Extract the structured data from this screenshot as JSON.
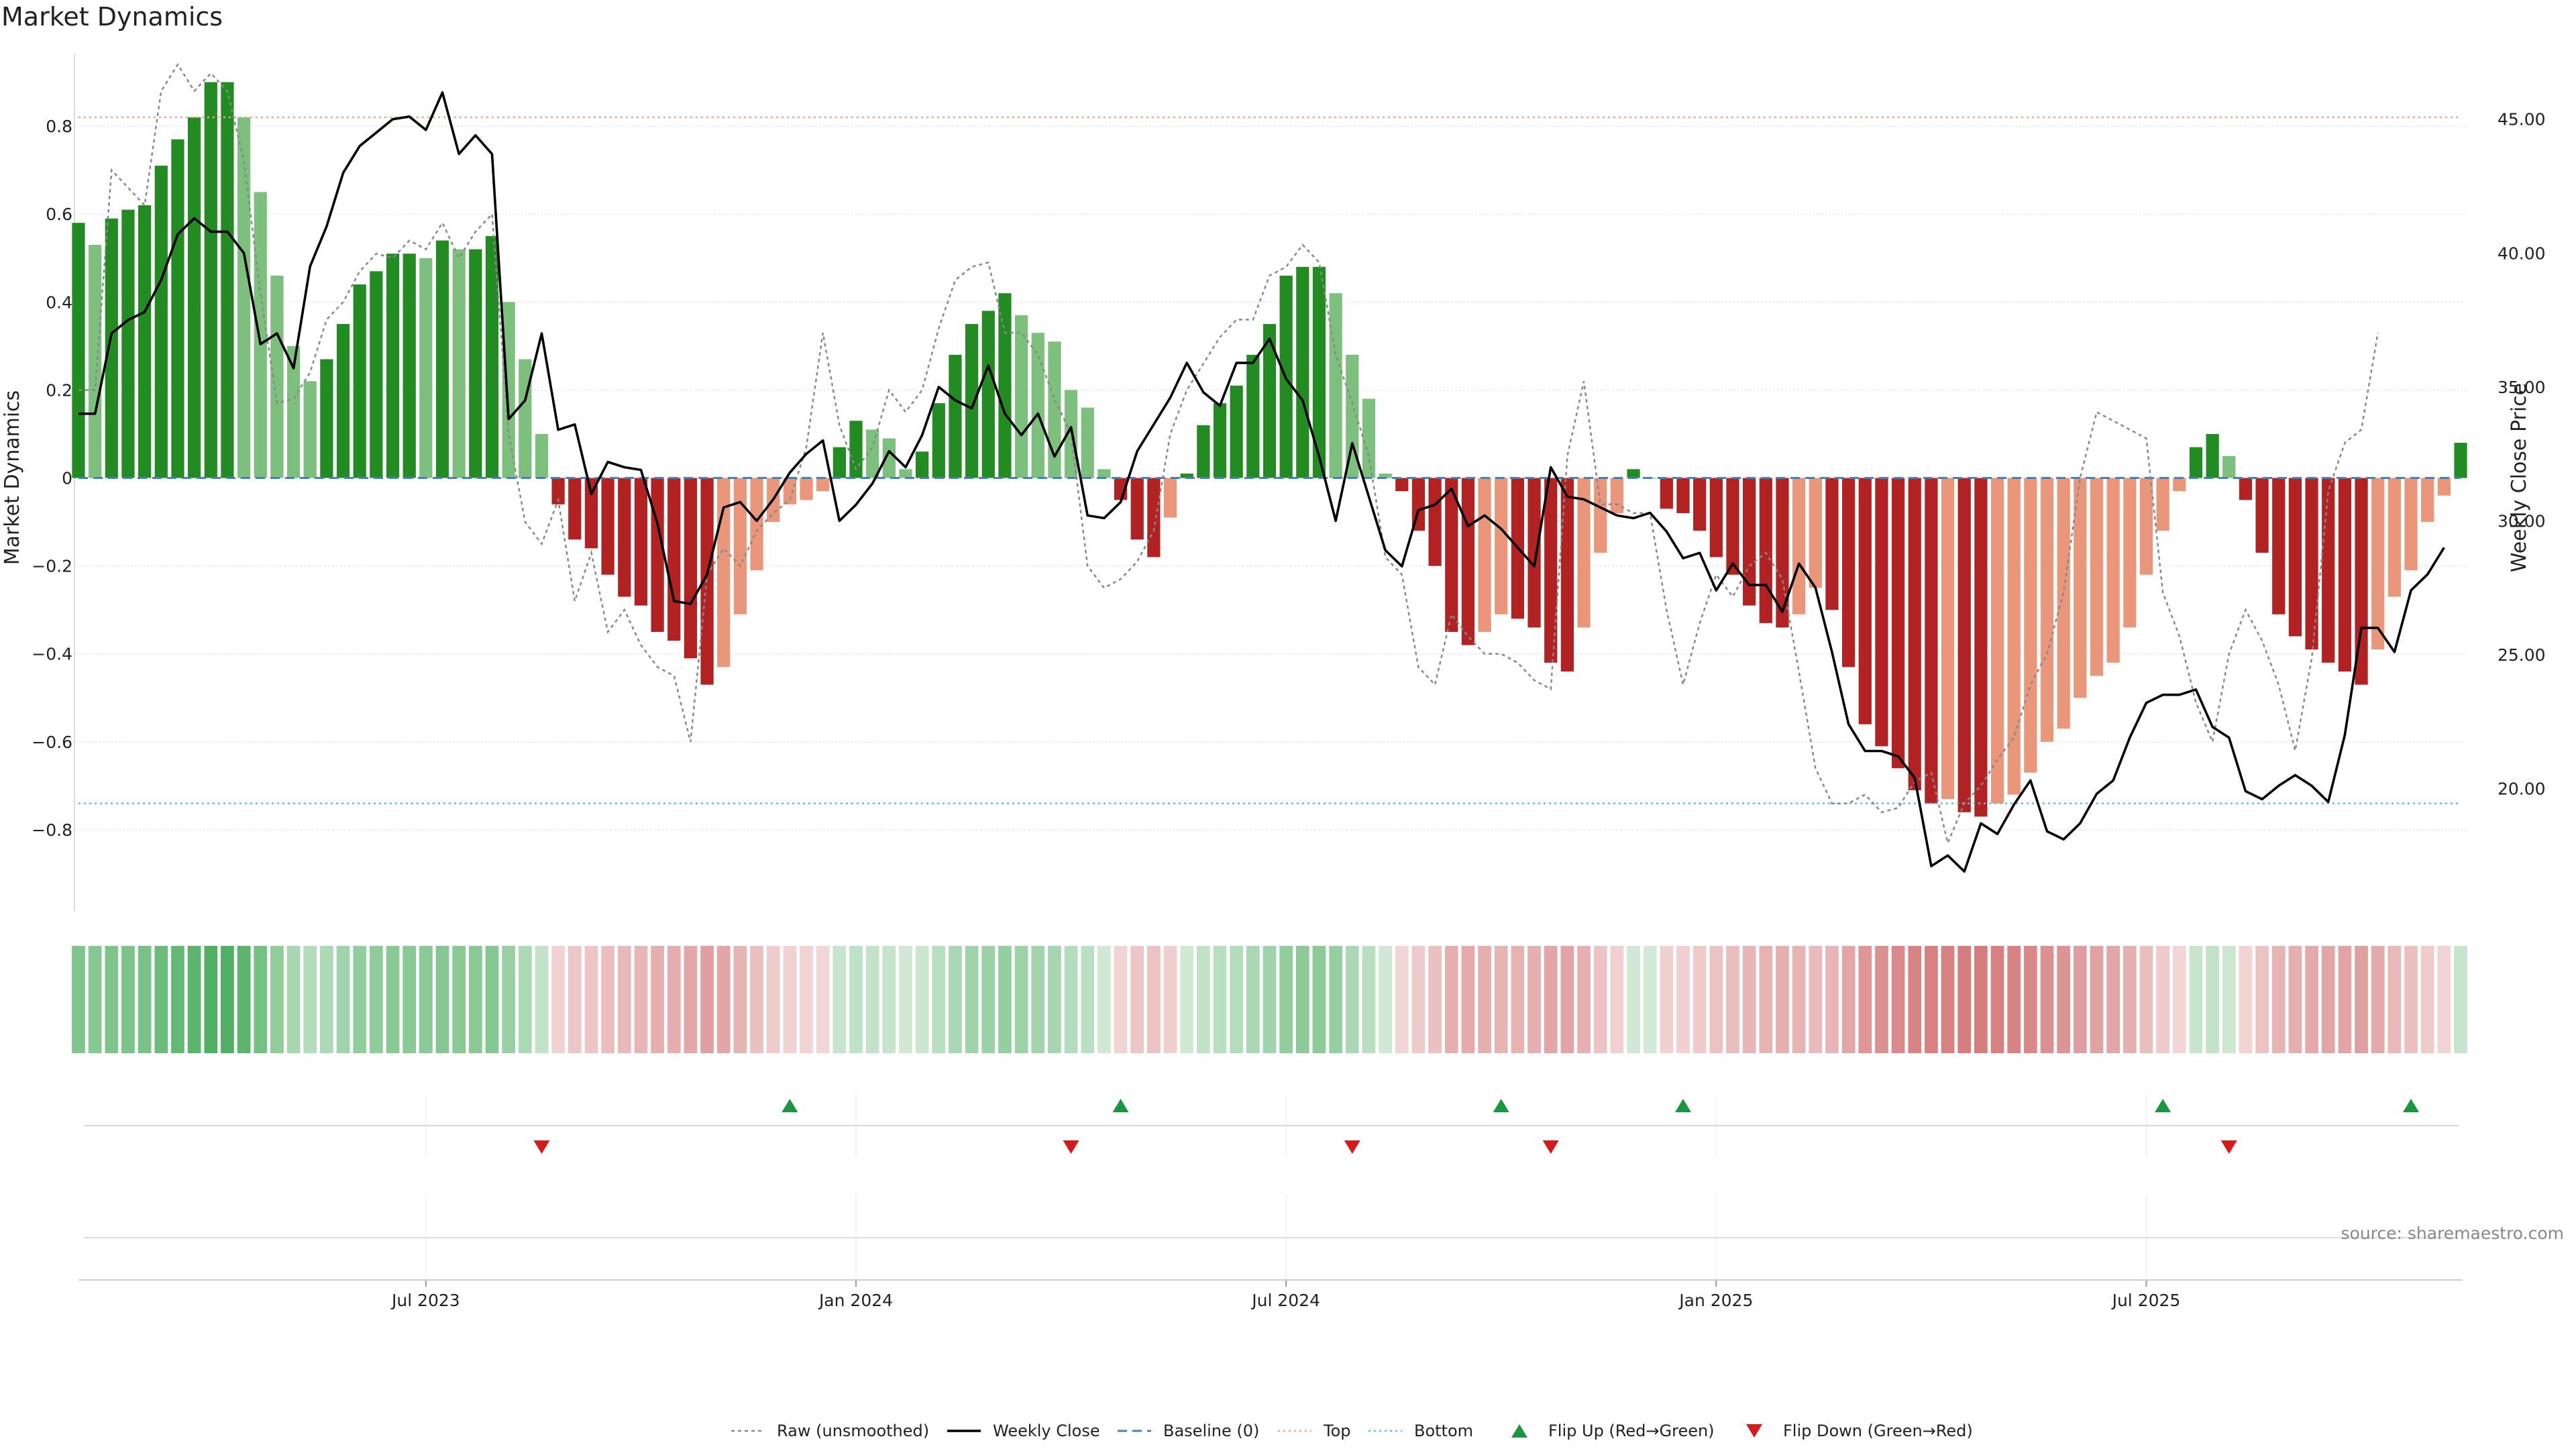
{
  "chart_data": {
    "type": "bar",
    "title": "Market Dynamics",
    "ylabel_left": "Market Dynamics",
    "ylabel_right": "Weekly Close Price",
    "xlabel": "",
    "source": "source: sharemaestro.com",
    "ylim_left": [
      -0.98,
      0.98
    ],
    "ylim_right": [
      15.5,
      47.7
    ],
    "yticks_left": [
      "0.8",
      "0.6",
      "0.4",
      "0.2",
      "0",
      "−0.2",
      "−0.4",
      "−0.6",
      "−0.8"
    ],
    "yticks_left_values": [
      0.8,
      0.6,
      0.4,
      0.2,
      0,
      -0.2,
      -0.4,
      -0.6,
      -0.8
    ],
    "yticks_right": [
      "45.00",
      "40.00",
      "35.00",
      "30.00",
      "25.00",
      "20.00"
    ],
    "yticks_right_values": [
      45,
      40,
      35,
      30,
      25,
      20
    ],
    "xticks": [
      {
        "label": "Jul 2023",
        "week": 21
      },
      {
        "label": "Jan 2024",
        "week": 47
      },
      {
        "label": "Jul 2024",
        "week": 73
      },
      {
        "label": "Jan 2025",
        "week": 99
      },
      {
        "label": "Jul 2025",
        "week": 125
      }
    ],
    "top_level": 0.82,
    "bottom_level": -0.74,
    "baseline": 0,
    "grid": true,
    "legend_position": "bottom-center",
    "legend": [
      "Raw (unsmoothed)",
      "Weekly Close",
      "Baseline (0)",
      "Top",
      "Bottom",
      "Flip Up (Red→Green)",
      "Flip Down (Green→Red)"
    ],
    "colors": {
      "pos_strong": "#228b22",
      "pos_weak": "#7dbf7d",
      "neg_strong": "#b22222",
      "neg_weak": "#e9967a",
      "close": "#000000",
      "raw": "#888888",
      "baseline": "#4682b4",
      "top": "#f4a582",
      "bottom": "#5bc0de",
      "flip_up": "#1a9641",
      "flip_down": "#d7191c"
    },
    "momentum": [
      0.58,
      0.53,
      0.59,
      0.61,
      0.62,
      0.71,
      0.77,
      0.82,
      0.9,
      0.9,
      0.82,
      0.65,
      0.46,
      0.3,
      0.22,
      0.27,
      0.35,
      0.44,
      0.47,
      0.51,
      0.51,
      0.5,
      0.54,
      0.52,
      0.52,
      0.55,
      0.4,
      0.27,
      0.1,
      -0.06,
      -0.14,
      -0.16,
      -0.22,
      -0.27,
      -0.29,
      -0.35,
      -0.37,
      -0.41,
      -0.47,
      -0.43,
      -0.31,
      -0.21,
      -0.1,
      -0.06,
      -0.05,
      -0.03,
      0.07,
      0.13,
      0.11,
      0.09,
      0.02,
      0.06,
      0.17,
      0.28,
      0.35,
      0.38,
      0.42,
      0.37,
      0.33,
      0.31,
      0.2,
      0.16,
      0.02,
      -0.05,
      -0.14,
      -0.18,
      -0.09,
      0.01,
      0.12,
      0.17,
      0.21,
      0.28,
      0.35,
      0.46,
      0.48,
      0.48,
      0.42,
      0.28,
      0.18,
      0.01,
      -0.03,
      -0.12,
      -0.2,
      -0.35,
      -0.38,
      -0.35,
      -0.31,
      -0.32,
      -0.34,
      -0.42,
      -0.44,
      -0.34,
      -0.17,
      -0.08,
      0.02,
      0.0,
      -0.07,
      -0.08,
      -0.12,
      -0.18,
      -0.22,
      -0.29,
      -0.33,
      -0.34,
      -0.31,
      -0.25,
      -0.3,
      -0.43,
      -0.56,
      -0.61,
      -0.66,
      -0.71,
      -0.74,
      -0.73,
      -0.76,
      -0.77,
      -0.74,
      -0.72,
      -0.67,
      -0.6,
      -0.57,
      -0.5,
      -0.45,
      -0.42,
      -0.34,
      -0.22,
      -0.12,
      -0.03,
      0.07,
      0.1,
      0.05,
      -0.05,
      -0.17,
      -0.31,
      -0.36,
      -0.39,
      -0.42,
      -0.44,
      -0.47,
      -0.39,
      -0.27,
      -0.21,
      -0.1,
      -0.04,
      0.08
    ],
    "raw": [
      0.2,
      0.2,
      0.7,
      0.66,
      0.62,
      0.88,
      0.94,
      0.88,
      0.92,
      0.88,
      0.72,
      0.42,
      0.17,
      0.18,
      0.24,
      0.36,
      0.4,
      0.47,
      0.51,
      0.5,
      0.54,
      0.52,
      0.58,
      0.5,
      0.56,
      0.6,
      0.1,
      -0.1,
      -0.15,
      -0.05,
      -0.28,
      -0.17,
      -0.35,
      -0.3,
      -0.38,
      -0.43,
      -0.45,
      -0.6,
      -0.22,
      -0.16,
      -0.2,
      -0.12,
      -0.08,
      -0.05,
      0.07,
      0.33,
      0.12,
      0.02,
      0.07,
      0.2,
      0.15,
      0.2,
      0.34,
      0.45,
      0.48,
      0.49,
      0.33,
      0.33,
      0.28,
      0.18,
      0.1,
      -0.2,
      -0.25,
      -0.23,
      -0.19,
      -0.12,
      0.1,
      0.2,
      0.26,
      0.32,
      0.36,
      0.36,
      0.46,
      0.48,
      0.53,
      0.49,
      0.28,
      0.17,
      0.05,
      -0.18,
      -0.22,
      -0.43,
      -0.47,
      -0.31,
      -0.36,
      -0.4,
      -0.4,
      -0.42,
      -0.46,
      -0.48,
      0.05,
      0.22,
      -0.06,
      -0.06,
      -0.08,
      -0.08,
      -0.3,
      -0.47,
      -0.33,
      -0.22,
      -0.27,
      -0.2,
      -0.17,
      -0.23,
      -0.44,
      -0.66,
      -0.74,
      -0.74,
      -0.72,
      -0.76,
      -0.75,
      -0.69,
      -0.67,
      -0.83,
      -0.74,
      -0.7,
      -0.64,
      -0.59,
      -0.47,
      -0.4,
      -0.26,
      0.0,
      0.15,
      0.13,
      0.11,
      0.09,
      -0.26,
      -0.36,
      -0.51,
      -0.6,
      -0.4,
      -0.3,
      -0.37,
      -0.47,
      -0.62,
      -0.41,
      -0.03,
      0.08,
      0.11,
      0.33
    ],
    "close": [
      34.0,
      34.0,
      37.0,
      37.5,
      37.8,
      39.0,
      40.7,
      41.3,
      40.8,
      40.8,
      40.0,
      36.6,
      37.0,
      35.7,
      39.5,
      41.0,
      43.0,
      44.0,
      44.5,
      45.0,
      45.1,
      44.6,
      46.0,
      43.7,
      44.4,
      43.7,
      33.8,
      34.5,
      37.0,
      33.4,
      33.6,
      31.0,
      32.2,
      32.0,
      31.9,
      29.9,
      27.0,
      26.9,
      28.0,
      30.5,
      30.7,
      30.0,
      30.8,
      31.8,
      32.5,
      33.0,
      30.0,
      30.6,
      31.4,
      32.6,
      32.0,
      33.2,
      35.0,
      34.5,
      34.2,
      35.8,
      34.0,
      33.2,
      34.0,
      32.4,
      33.5,
      30.2,
      30.1,
      30.7,
      32.6,
      33.6,
      34.6,
      35.9,
      34.8,
      34.3,
      35.9,
      35.9,
      36.8,
      35.3,
      34.5,
      32.4,
      30.0,
      32.9,
      30.9,
      28.9,
      28.3,
      30.4,
      30.6,
      31.2,
      29.8,
      30.2,
      29.7,
      29.0,
      28.3,
      32.0,
      30.9,
      30.8,
      30.5,
      30.2,
      30.1,
      30.3,
      29.6,
      28.6,
      28.8,
      27.4,
      28.4,
      27.6,
      27.6,
      26.6,
      28.4,
      27.5,
      25.1,
      22.4,
      21.4,
      21.4,
      21.2,
      20.4,
      17.1,
      17.5,
      16.9,
      18.7,
      18.3,
      19.4,
      20.3,
      18.4,
      18.1,
      18.7,
      19.8,
      20.3,
      21.9,
      23.2,
      23.5,
      23.5,
      23.7,
      22.3,
      21.9,
      19.9,
      19.6,
      20.1,
      20.5,
      20.1,
      19.5,
      22.0,
      26.0,
      26.0,
      25.1,
      27.4,
      28.0,
      29.0
    ],
    "flip_up_weeks": [
      43,
      63,
      86,
      97,
      126,
      141
    ],
    "flip_down_weeks": [
      28,
      60,
      77,
      89,
      130
    ]
  }
}
